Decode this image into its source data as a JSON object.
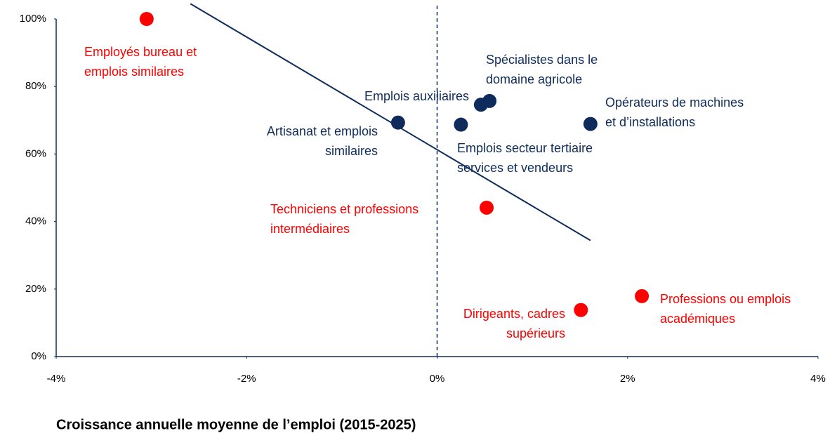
{
  "chart_data": {
    "type": "scatter",
    "xlabel": "Croissance annuelle moyenne de l’emploi (2015-2025)",
    "x": [
      -3.05,
      -0.41,
      0.46,
      0.55,
      0.25,
      1.61,
      0.52,
      1.51,
      2.15
    ],
    "y": [
      100,
      69.3,
      74.6,
      75.7,
      68.7,
      68.9,
      44.1,
      13.8,
      17.9
    ],
    "colors": [
      "#ff0000",
      "#0e2b5c",
      "#0e2b5c",
      "#0e2b5c",
      "#0e2b5c",
      "#0e2b5c",
      "#ff0000",
      "#ff0000",
      "#ff0000"
    ],
    "labels": [
      [
        "Employés bureau et",
        "emplois similaires"
      ],
      [
        "Artisanat et emplois",
        "similaires"
      ],
      [
        "Emplois auxiliaires"
      ],
      [
        "Spécialistes dans le",
        "domaine agricole"
      ],
      [
        "Emplois secteur tertiaire",
        "services et vendeurs"
      ],
      [
        "Opérateurs de machines",
        "et d’installations"
      ],
      [
        "Techniciens et professions",
        "intermédiaires"
      ],
      [
        "Dirigeants, cadres",
        "supérieurs"
      ],
      [
        "Professions ou emplois",
        "académiques"
      ]
    ],
    "trendline": {
      "x": [
        -2.59,
        1.61
      ],
      "y": [
        104.5,
        34.4
      ],
      "color": "#0e2b5c"
    },
    "xlim": [
      -4,
      4
    ],
    "ylim": [
      0,
      100
    ],
    "xticks": [
      {
        "value": -4,
        "label": "-4%"
      },
      {
        "value": -2,
        "label": "-2%"
      },
      {
        "value": 0,
        "label": "0%"
      },
      {
        "value": 2,
        "label": "2%"
      },
      {
        "value": 4,
        "label": "4%"
      }
    ],
    "yticks": [
      {
        "value": 0,
        "label": "0%"
      },
      {
        "value": 20,
        "label": "20%"
      },
      {
        "value": 40,
        "label": "40%"
      },
      {
        "value": 60,
        "label": "60%"
      },
      {
        "value": 80,
        "label": "80%"
      },
      {
        "value": 100,
        "label": "100%"
      }
    ]
  }
}
